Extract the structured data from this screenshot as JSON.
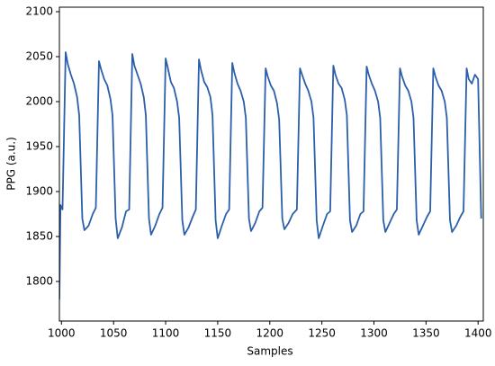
{
  "chart_data": {
    "type": "line",
    "xlabel": "Samples",
    "ylabel": "PPG (a.u.)",
    "xlim": [
      998,
      1405
    ],
    "ylim": [
      1756,
      2105
    ],
    "xticks": [
      1000,
      1050,
      1100,
      1150,
      1200,
      1250,
      1300,
      1350,
      1400
    ],
    "yticks": [
      1800,
      1850,
      1900,
      1950,
      2000,
      2050,
      2100
    ],
    "grid": false,
    "series": [
      {
        "color": "#2c5fab",
        "x": [
          998,
          999,
          1001,
          1004,
          1006,
          1009,
          1012,
          1015,
          1017,
          1020,
          1022,
          1026,
          1030,
          1033,
          1036,
          1038,
          1041,
          1044,
          1047,
          1049,
          1052,
          1054,
          1058,
          1062,
          1065,
          1068,
          1070,
          1073,
          1076,
          1079,
          1081,
          1084,
          1086,
          1090,
          1094,
          1097,
          1100,
          1102,
          1105,
          1108,
          1111,
          1113,
          1116,
          1118,
          1122,
          1126,
          1129,
          1132,
          1134,
          1137,
          1140,
          1143,
          1145,
          1148,
          1150,
          1154,
          1158,
          1161,
          1164,
          1166,
          1169,
          1172,
          1175,
          1177,
          1180,
          1182,
          1186,
          1190,
          1193,
          1196,
          1198,
          1201,
          1204,
          1207,
          1209,
          1212,
          1214,
          1218,
          1222,
          1226,
          1229,
          1231,
          1234,
          1237,
          1240,
          1242,
          1245,
          1247,
          1251,
          1255,
          1258,
          1261,
          1263,
          1266,
          1269,
          1272,
          1274,
          1277,
          1279,
          1283,
          1287,
          1290,
          1293,
          1295,
          1298,
          1301,
          1304,
          1306,
          1309,
          1311,
          1315,
          1319,
          1322,
          1325,
          1327,
          1330,
          1333,
          1336,
          1338,
          1341,
          1343,
          1347,
          1351,
          1354,
          1357,
          1359,
          1362,
          1365,
          1368,
          1370,
          1373,
          1375,
          1379,
          1383,
          1386,
          1389,
          1391,
          1394,
          1397,
          1400,
          1403
        ],
        "values": [
          1780,
          1885,
          1880,
          2055,
          2042,
          2030,
          2020,
          2005,
          1985,
          1870,
          1857,
          1862,
          1875,
          1882,
          2045,
          2036,
          2025,
          2018,
          2003,
          1985,
          1870,
          1848,
          1860,
          1878,
          1880,
          2053,
          2040,
          2030,
          2020,
          2005,
          1985,
          1870,
          1852,
          1862,
          1875,
          1882,
          2048,
          2038,
          2022,
          2015,
          2000,
          1982,
          1868,
          1852,
          1860,
          1872,
          1880,
          2047,
          2035,
          2022,
          2016,
          2005,
          1985,
          1868,
          1848,
          1862,
          1875,
          1880,
          2043,
          2032,
          2020,
          2012,
          2000,
          1982,
          1870,
          1856,
          1865,
          1878,
          1882,
          2037,
          2028,
          2018,
          2012,
          1998,
          1980,
          1870,
          1858,
          1865,
          1875,
          1880,
          2037,
          2030,
          2020,
          2012,
          2000,
          1982,
          1868,
          1848,
          1862,
          1875,
          1878,
          2040,
          2030,
          2020,
          2015,
          2002,
          1985,
          1868,
          1855,
          1862,
          1875,
          1878,
          2039,
          2030,
          2020,
          2012,
          2000,
          1982,
          1868,
          1855,
          1865,
          1875,
          1880,
          2037,
          2028,
          2018,
          2012,
          2000,
          1982,
          1868,
          1852,
          1862,
          1872,
          1878,
          2037,
          2028,
          2018,
          2012,
          2000,
          1982,
          1868,
          1855,
          1862,
          1872,
          1878,
          2037,
          2025,
          2020,
          2030,
          2025,
          1870
        ]
      }
    ]
  }
}
